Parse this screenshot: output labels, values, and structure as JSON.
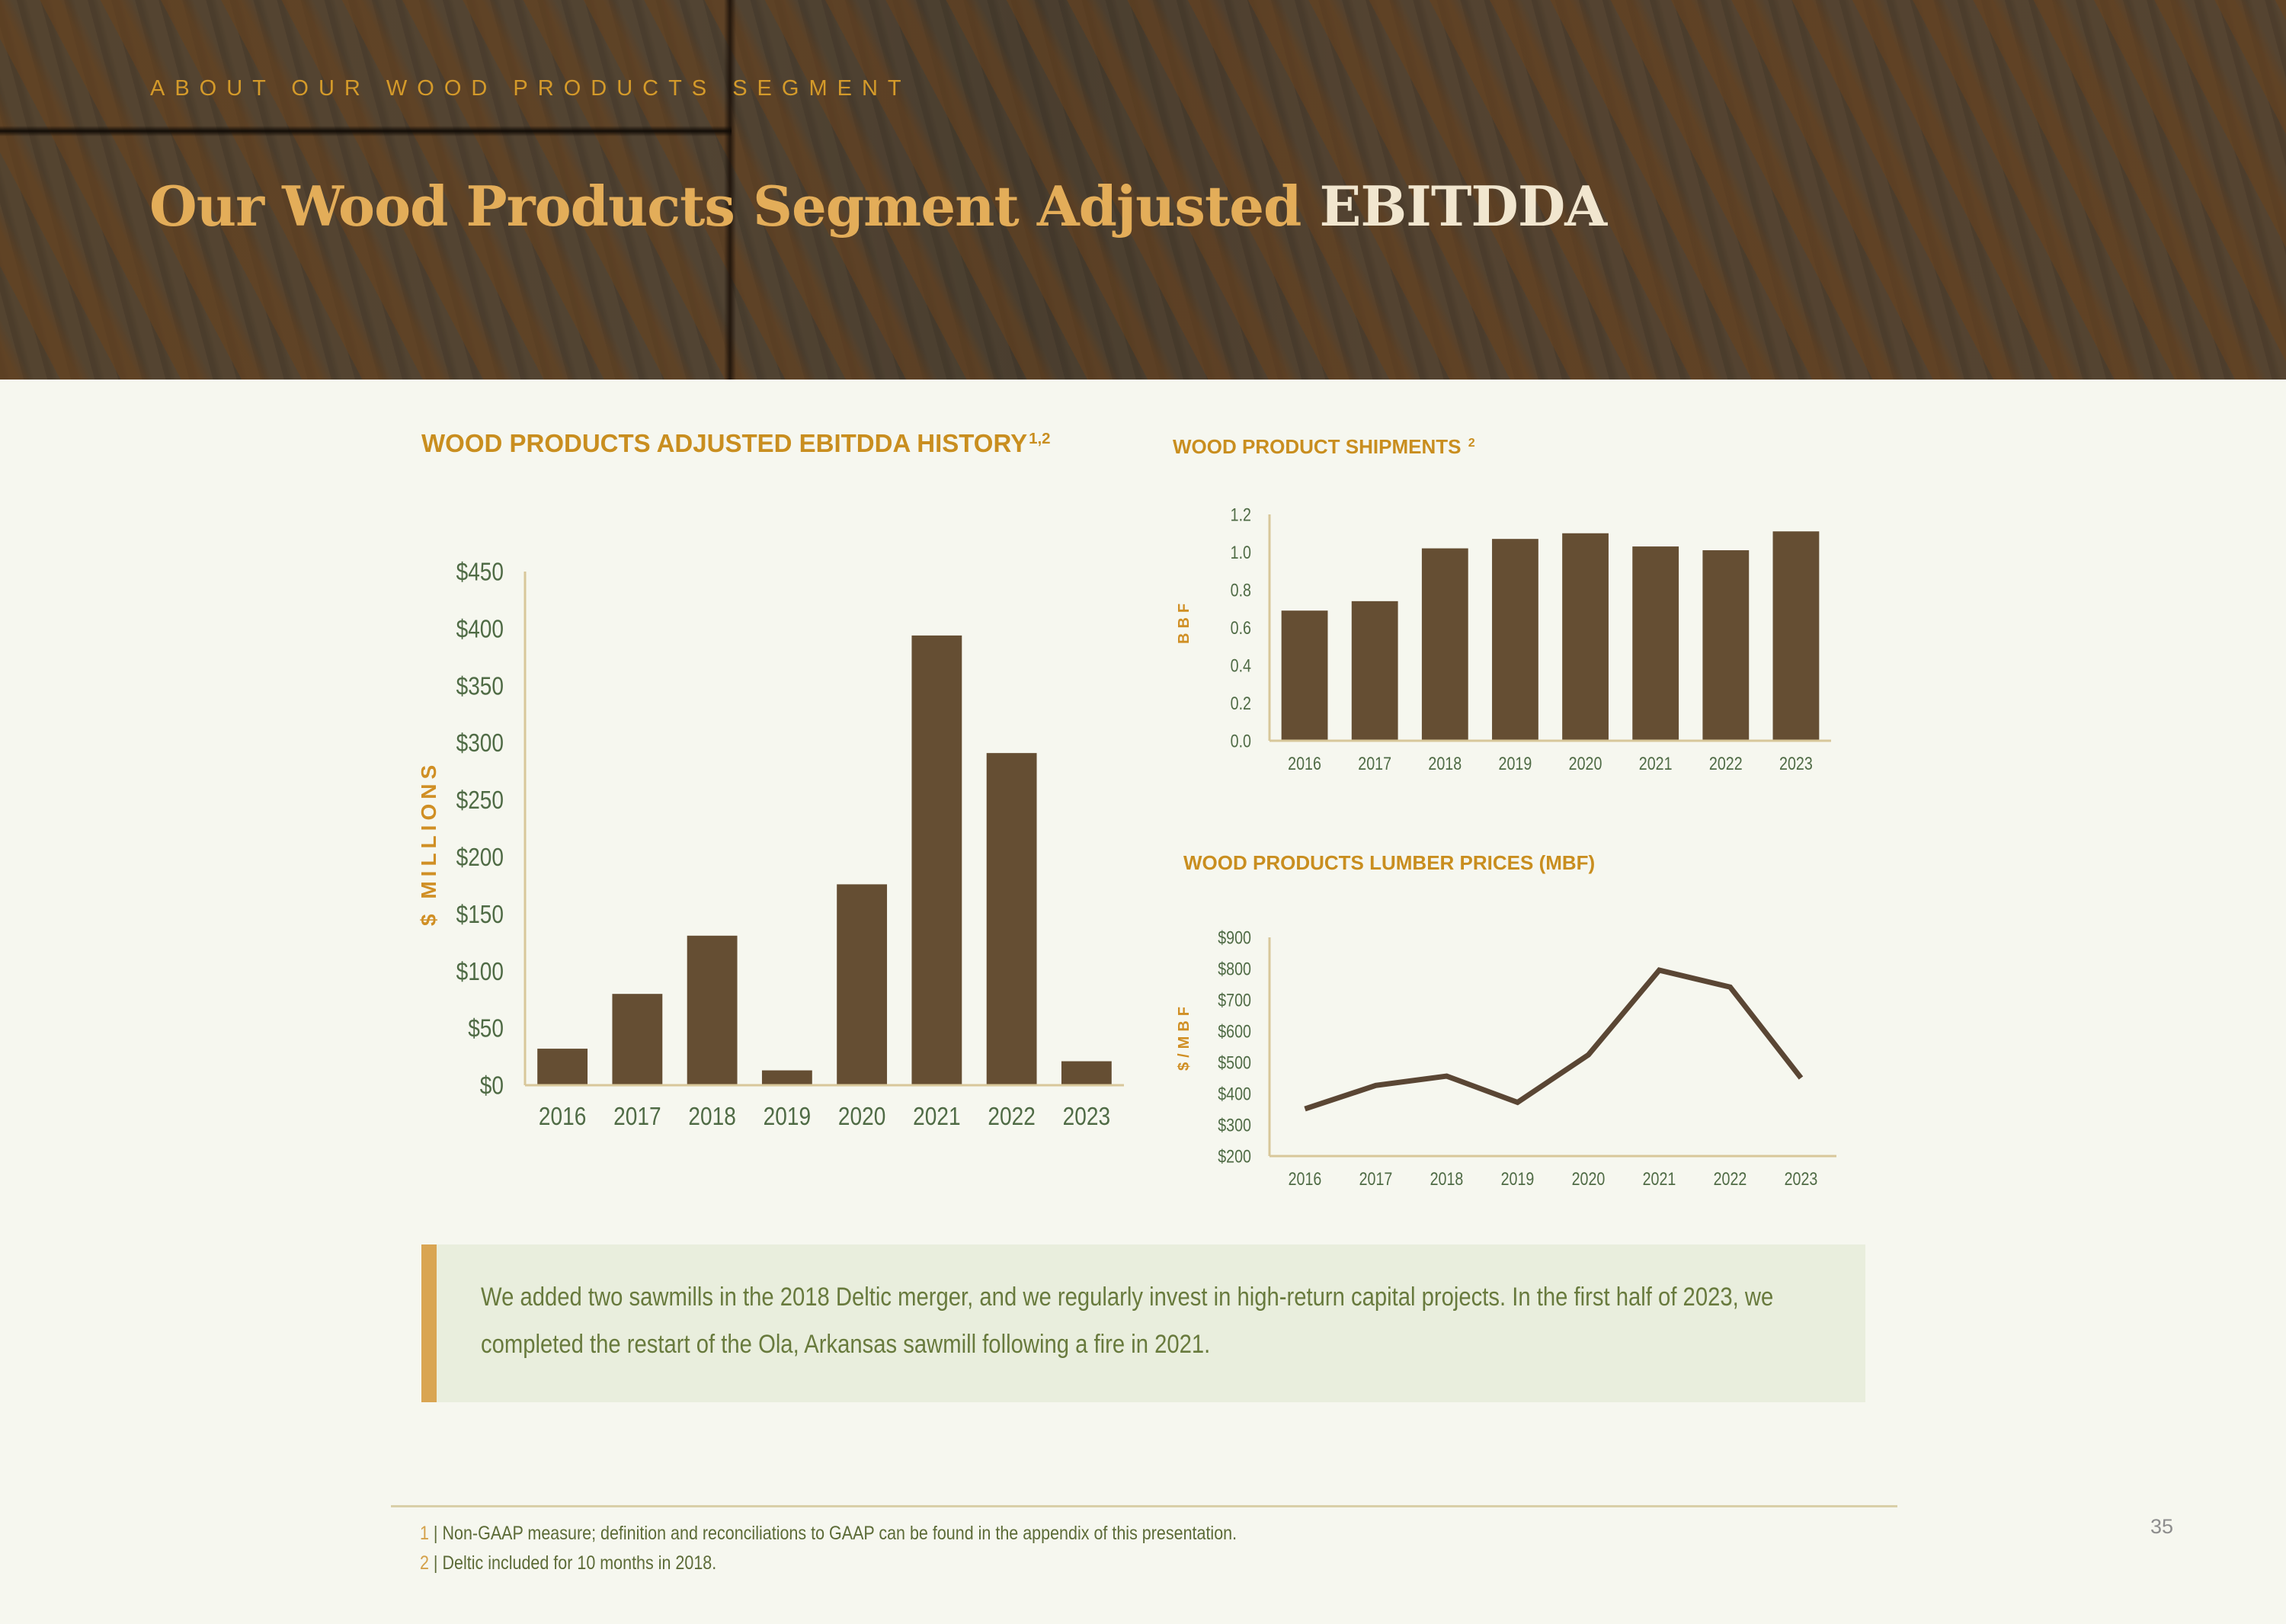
{
  "header": {
    "kicker": "ABOUT OUR WOOD PRODUCTS SEGMENT",
    "title_main": "Our Wood Products Segment Adjusted ",
    "title_accent": "EBITDDA"
  },
  "colors": {
    "bar": "#654e33",
    "line": "#5a4634",
    "axis": "#d8c79a",
    "tick_text": "#4f6b45",
    "title_gold": "#c98e1f",
    "callout_bg": "#e9eedd",
    "callout_stripe": "#d9a552"
  },
  "charts": {
    "ebitdda": {
      "title": "WOOD PRODUCTS ADJUSTED EBITDDA HISTORY",
      "superscript": "1,2",
      "ylabel": "$ MILLIONS"
    },
    "shipments": {
      "title": "WOOD PRODUCT SHIPMENTS",
      "superscript": "2",
      "ylabel": "BBF"
    },
    "lumber": {
      "title": "WOOD PRODUCTS LUMBER PRICES (MBF)",
      "ylabel": "$/MBF"
    }
  },
  "chart_data": [
    {
      "type": "bar",
      "title": "WOOD PRODUCTS ADJUSTED EBITDDA HISTORY",
      "xlabel": "",
      "ylabel": "$ MILLIONS",
      "categories": [
        "2016",
        "2017",
        "2018",
        "2019",
        "2020",
        "2021",
        "2022",
        "2023"
      ],
      "values": [
        32,
        80,
        131,
        13,
        176,
        394,
        291,
        21
      ],
      "ylim": [
        0,
        450
      ],
      "yticks": [
        0,
        50,
        100,
        150,
        200,
        250,
        300,
        350,
        400,
        450
      ],
      "ytick_labels": [
        "$0",
        "$50",
        "$100",
        "$150",
        "$200",
        "$250",
        "$300",
        "$350",
        "$400",
        "$450"
      ],
      "grid": false,
      "legend": "none"
    },
    {
      "type": "bar",
      "title": "WOOD PRODUCT SHIPMENTS",
      "xlabel": "",
      "ylabel": "BBF",
      "categories": [
        "2016",
        "2017",
        "2018",
        "2019",
        "2020",
        "2021",
        "2022",
        "2023"
      ],
      "values": [
        0.69,
        0.74,
        1.02,
        1.07,
        1.1,
        1.03,
        1.01,
        1.11
      ],
      "ylim": [
        0,
        1.2
      ],
      "yticks": [
        0,
        0.2,
        0.4,
        0.6,
        0.8,
        1.0,
        1.2
      ],
      "ytick_labels": [
        "0.0",
        "0.2",
        "0.4",
        "0.6",
        "0.8",
        "1.0",
        "1.2"
      ],
      "grid": false,
      "legend": "none"
    },
    {
      "type": "line",
      "title": "WOOD PRODUCTS LUMBER PRICES (MBF)",
      "xlabel": "",
      "ylabel": "$/MBF",
      "categories": [
        "2016",
        "2017",
        "2018",
        "2019",
        "2020",
        "2021",
        "2022",
        "2023"
      ],
      "values": [
        351,
        426,
        456,
        372,
        524,
        795,
        741,
        450
      ],
      "ylim": [
        200,
        900
      ],
      "yticks": [
        200,
        300,
        400,
        500,
        600,
        700,
        800,
        900
      ],
      "ytick_labels": [
        "$200",
        "$300",
        "$400",
        "$500",
        "$600",
        "$700",
        "$800",
        "$900"
      ],
      "grid": false,
      "legend": "none"
    }
  ],
  "callout": {
    "text": "We added two sawmills in the 2018 Deltic merger, and we regularly invest in high-return capital projects. In the first half of 2023, we completed the restart of the Ola, Arkansas sawmill following a fire in 2021."
  },
  "footnotes": [
    {
      "num": "1",
      "sep": " | ",
      "text": "Non-GAAP measure; definition and reconciliations to GAAP can be found in the appendix of this presentation."
    },
    {
      "num": "2",
      "sep": " | ",
      "text": "Deltic included for 10 months in 2018."
    }
  ],
  "page_number": "35"
}
